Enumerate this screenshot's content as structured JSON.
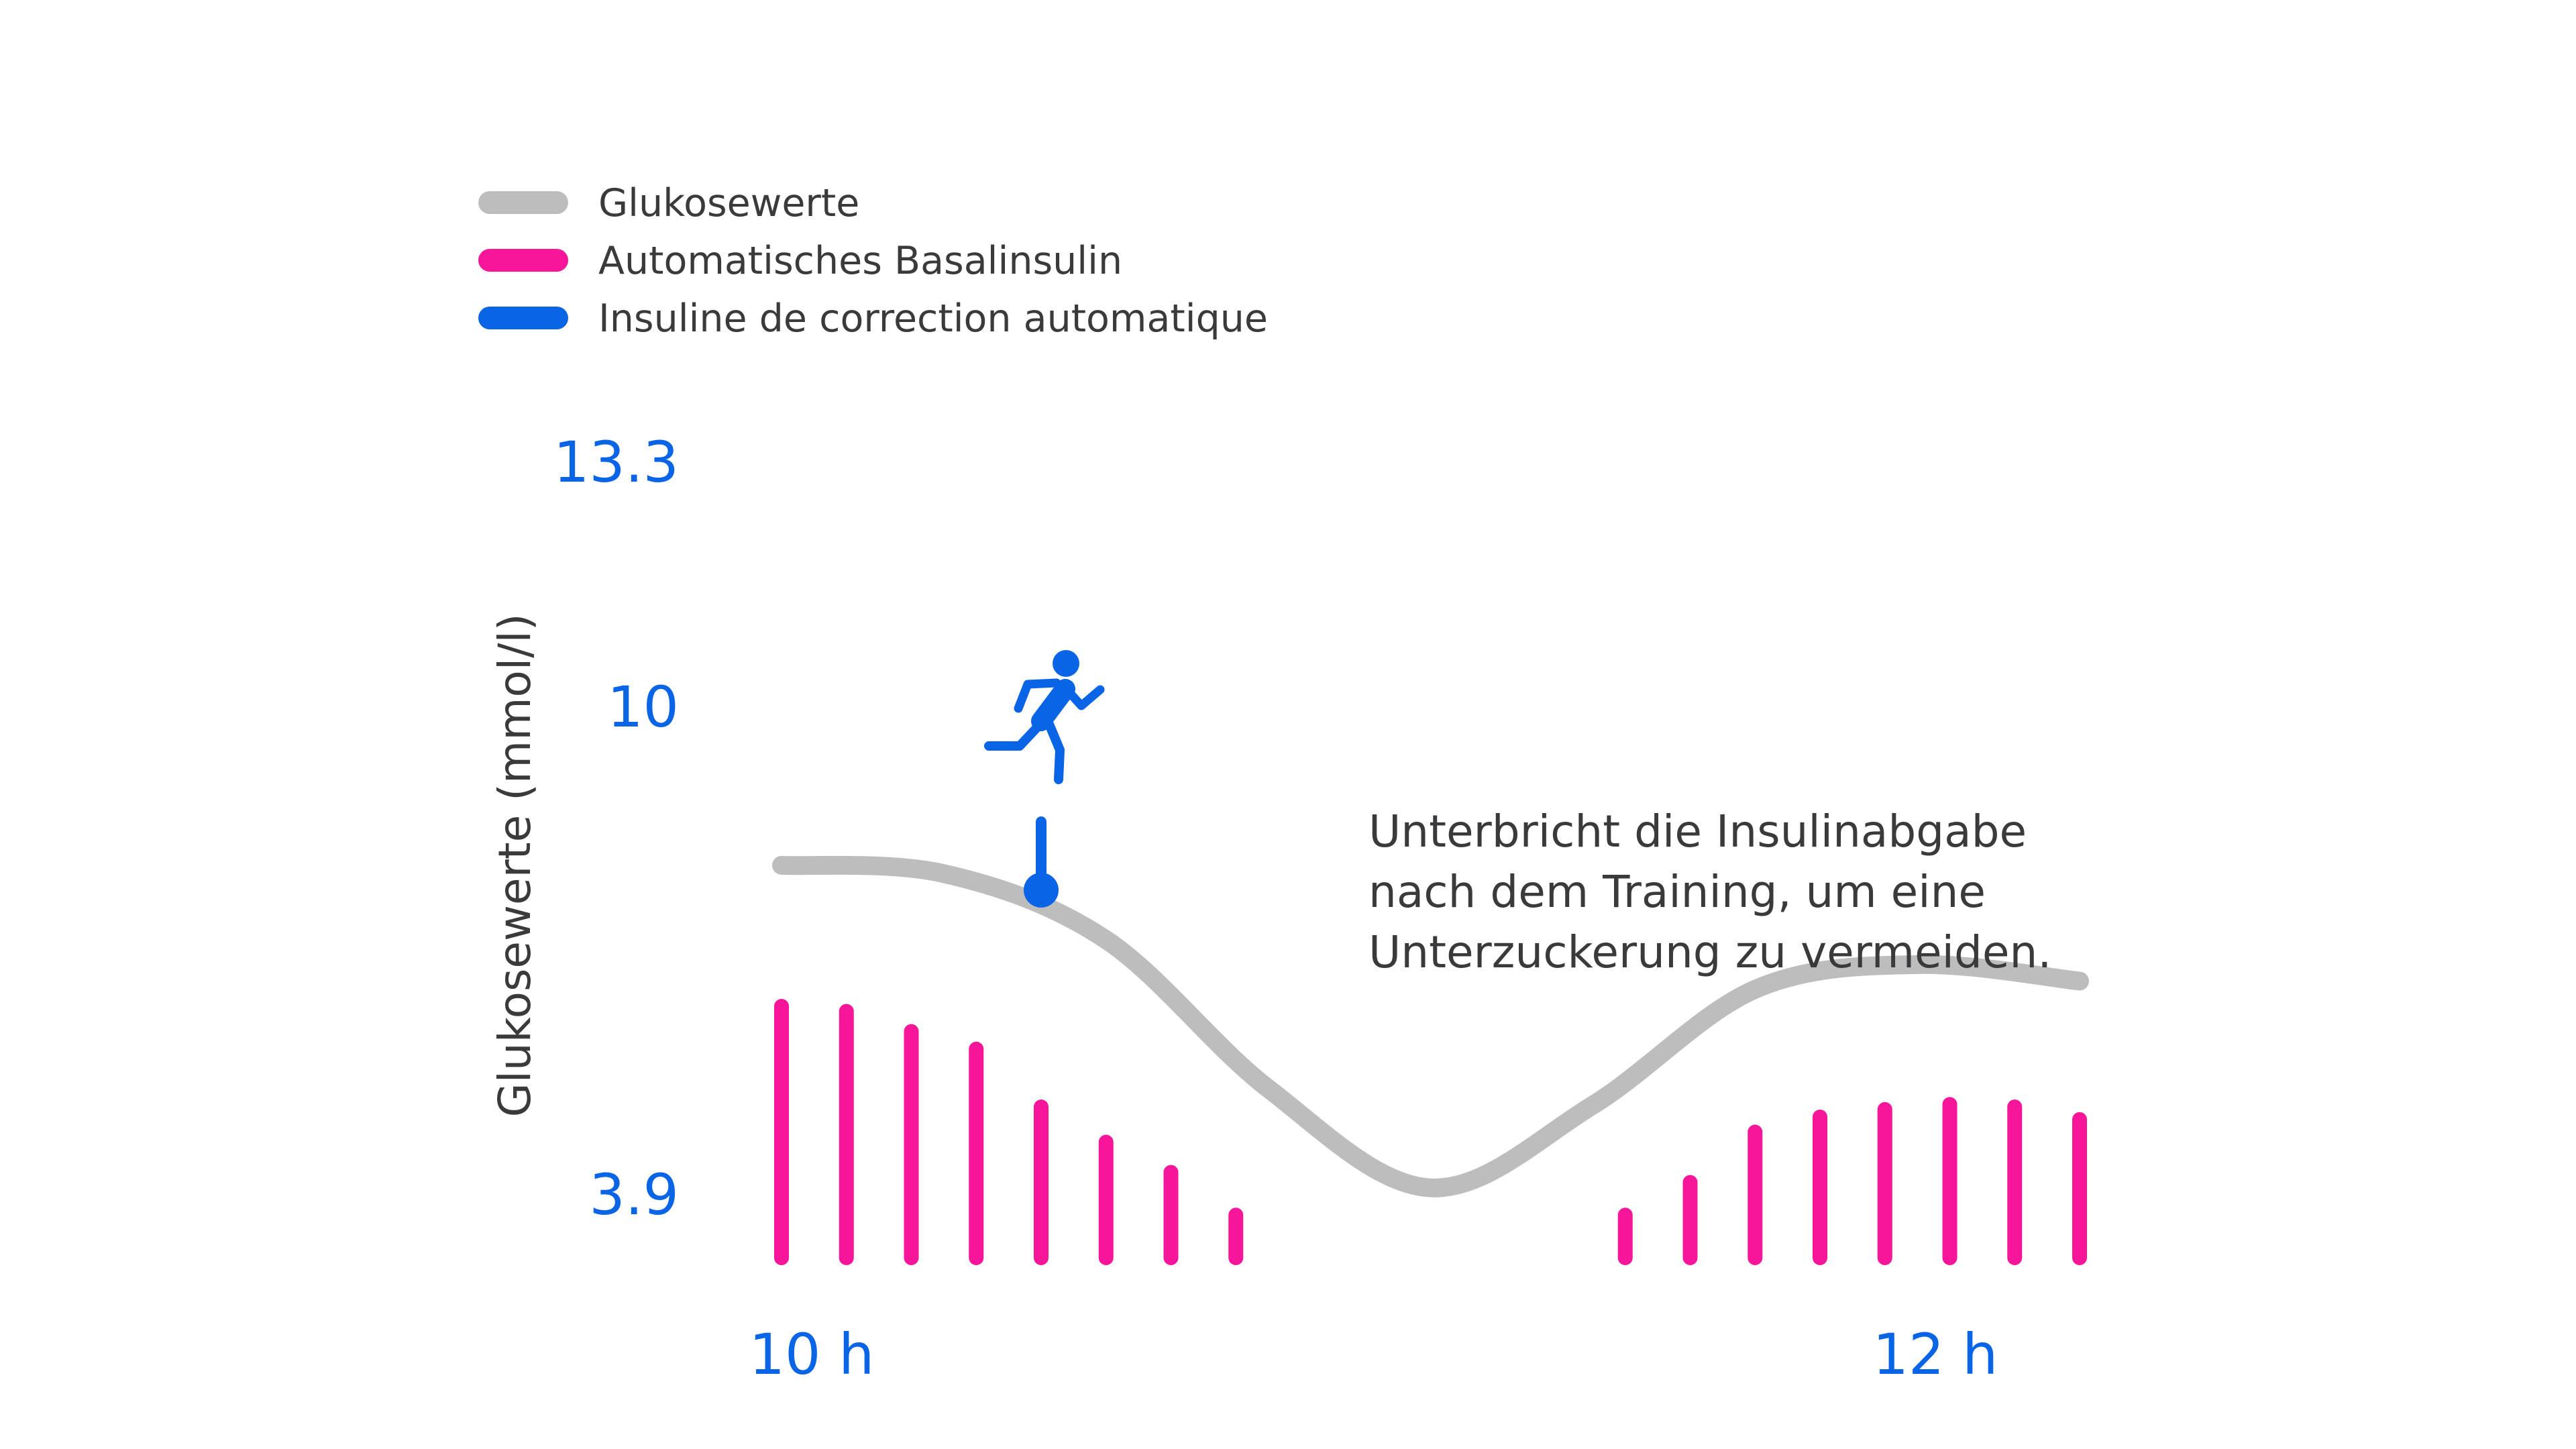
{
  "chart_data": {
    "type": "line",
    "title": "",
    "xlabel": "",
    "ylabel": "Glukosewerte (mmol/l)",
    "y_ticks": [
      "13.3",
      "10",
      "3.9"
    ],
    "x_ticks": [
      "10 h",
      "12 h"
    ],
    "legend": {
      "placement": "top-left",
      "entries": [
        {
          "label": "Glukosewerte",
          "color": "#bdbdbd"
        },
        {
          "label": "Automatisches Basalinsulin",
          "color": "#f7169a"
        },
        {
          "label": "Insuline de correction automatique",
          "color": "#0a64e6"
        }
      ]
    },
    "series": [
      {
        "name": "Glukosewerte",
        "kind": "line",
        "color": "#bdbdbd",
        "x_hours": [
          10.0,
          10.25,
          10.5,
          10.75,
          11.0,
          11.25,
          11.5,
          11.75,
          12.0
        ],
        "values": [
          8.2,
          8.1,
          7.3,
          5.5,
          4.3,
          5.3,
          6.7,
          7.0,
          6.8
        ]
      },
      {
        "name": "Automatisches Basalinsulin",
        "kind": "bar",
        "color": "#f7169a",
        "x_hours": [
          10.0,
          10.1,
          10.2,
          10.3,
          10.4,
          10.5,
          10.6,
          10.7,
          11.3,
          11.4,
          11.5,
          11.6,
          11.7,
          11.8,
          11.9,
          12.0
        ],
        "values": [
          1.0,
          0.98,
          0.9,
          0.83,
          0.6,
          0.46,
          0.34,
          0.17,
          0.17,
          0.3,
          0.5,
          0.56,
          0.59,
          0.61,
          0.6,
          0.55
        ]
      },
      {
        "name": "Insuline de correction automatique",
        "kind": "marker",
        "color": "#0a64e6",
        "x_hours": [
          10.4
        ],
        "values": [
          7.9
        ]
      }
    ],
    "annotations": [
      {
        "icon": "running-person-icon",
        "color": "#0a64e6"
      },
      {
        "lines": [
          "Unterbricht die Insulinabgabe",
          "nach dem Training, um eine",
          "Unterzuckerung zu vermeiden."
        ]
      }
    ]
  }
}
